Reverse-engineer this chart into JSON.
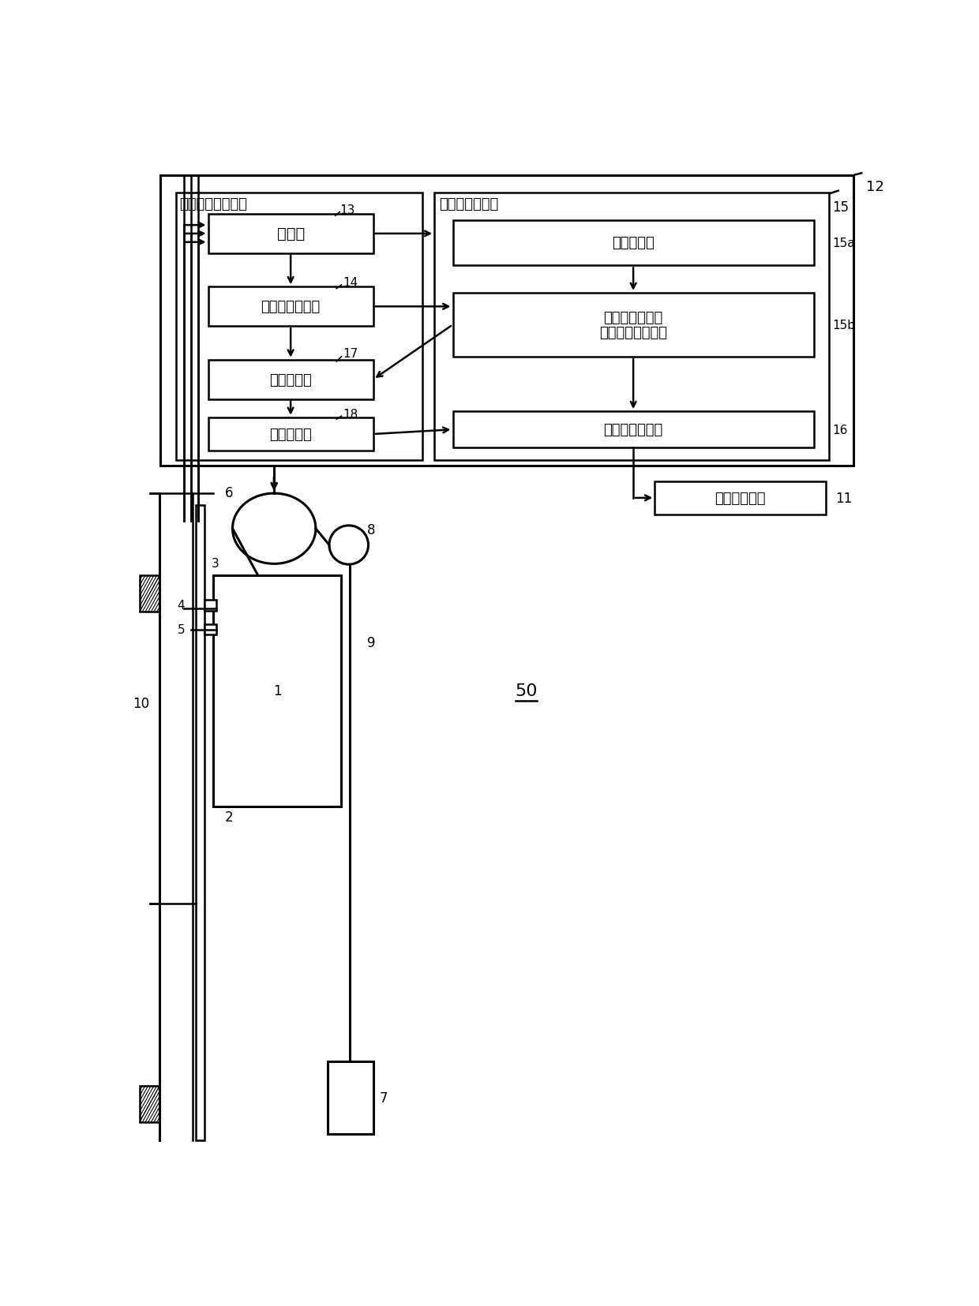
{
  "bg_color": "#ffffff",
  "line_color": "#000000",
  "label_12": "12",
  "label_11": "11",
  "label_13": "13",
  "label_14": "14",
  "label_15": "15",
  "label_15a": "15a",
  "label_15b": "15b",
  "label_16": "16",
  "label_17": "17",
  "label_18": "18",
  "label_50": "50",
  "label_10": "10",
  "label_1": "1",
  "label_2": "2",
  "label_3": "3",
  "label_4": "4",
  "label_5": "5",
  "label_6": "6",
  "label_7": "7",
  "label_8": "8",
  "label_9": "9",
  "box_jiaokoubu": "接口部",
  "box_celiangshuju": "测量数据生成部",
  "box_yichang": "异常诊断部",
  "box_waibu": "外部通信部",
  "box_cengshuju_label": "楼层数据生成部",
  "box_cengshuju_biao": "楼层数据表",
  "box_cengshuju_work_line1": "楼层数据工作表",
  "box_cengshuju_work_line2": "（长时间停电用）",
  "box_jiaoxiang_pos": "轿厢位置确定部",
  "box_dianti": "电梯控制装置",
  "label_jiaoxiang": "轿厢位置确定装置"
}
